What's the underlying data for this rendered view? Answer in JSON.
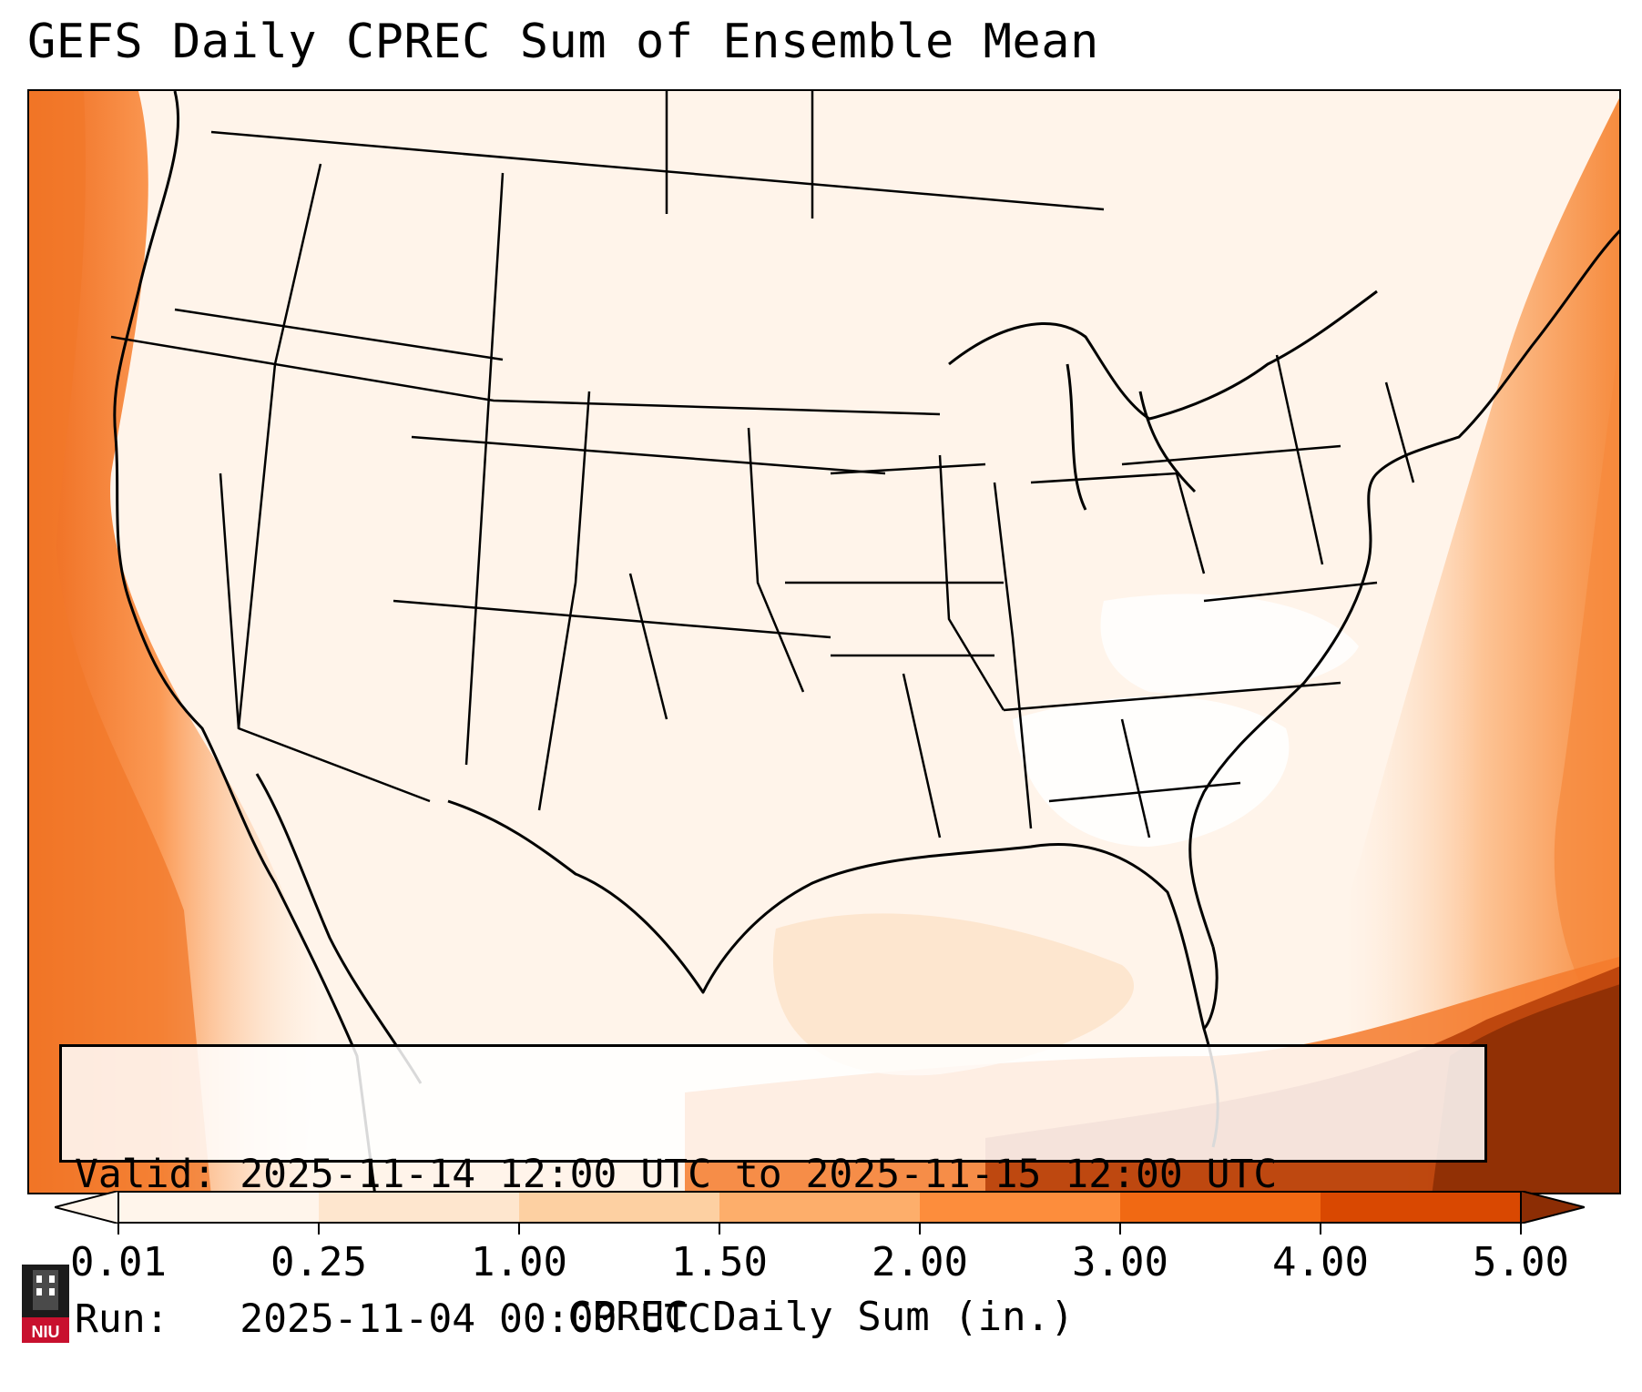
{
  "title": "GEFS Daily CPREC Sum of Ensemble Mean",
  "valid_line": "Valid: 2025-11-14 12:00 UTC to 2025-11-15 12:00 UTC",
  "run_line": "Run:   2025-11-04 00:00 UTC",
  "colorbar": {
    "label": "CPREC Daily Sum (in.)",
    "ticks": [
      "0.01",
      "0.25",
      "1.00",
      "1.50",
      "2.00",
      "3.00",
      "4.00",
      "5.00"
    ],
    "colors": [
      "#fff5eb",
      "#fee6ce",
      "#fdd0a2",
      "#fdae6b",
      "#fd8d3c",
      "#f16913",
      "#d94801",
      "#8c2d04"
    ],
    "extend": "both"
  },
  "logo": {
    "text": "NIU",
    "icon": "university-tower-icon"
  }
}
